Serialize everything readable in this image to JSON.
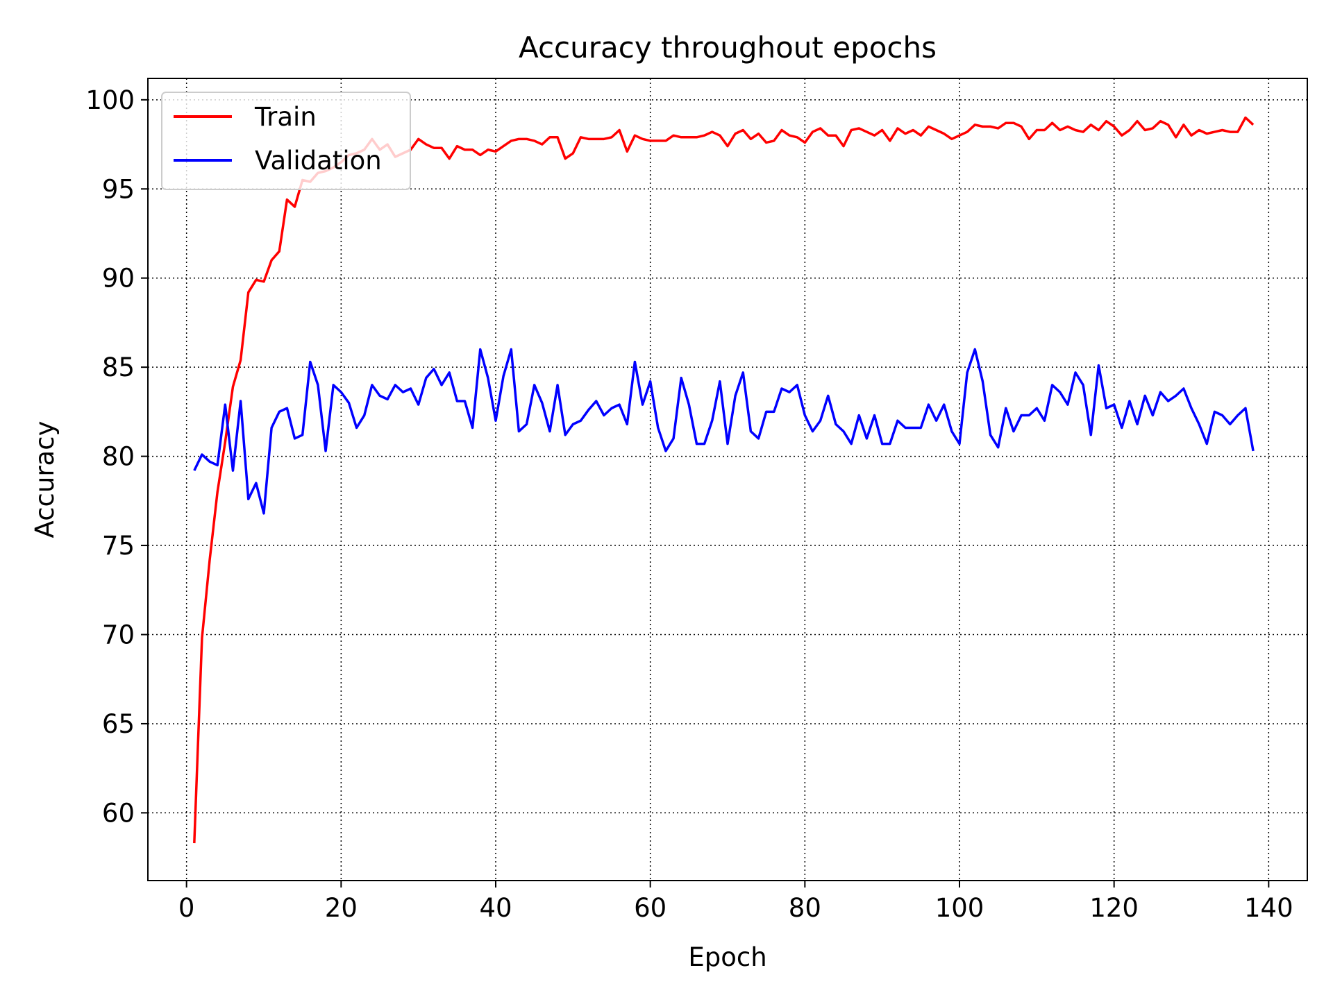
{
  "chart_data": {
    "type": "line",
    "title": "Accuracy throughout epochs",
    "xlabel": "Epoch",
    "ylabel": "Accuracy",
    "xlim": [
      -5,
      145
    ],
    "ylim": [
      56.2,
      101.2
    ],
    "xticks": [
      0,
      20,
      40,
      60,
      80,
      100,
      120,
      140
    ],
    "xtick_labels": [
      "0",
      "20",
      "40",
      "60",
      "80",
      "100",
      "120",
      "140"
    ],
    "yticks": [
      60,
      65,
      70,
      75,
      80,
      85,
      90,
      95,
      100
    ],
    "ytick_labels": [
      "60",
      "65",
      "70",
      "75",
      "80",
      "85",
      "90",
      "95",
      "100"
    ],
    "grid": true,
    "grid_style": "dotted",
    "legend_position": "top-left",
    "series": [
      {
        "name": "Train",
        "color": "#ff0000",
        "x": [
          1,
          2,
          3,
          4,
          5,
          6,
          7,
          8,
          9,
          10,
          11,
          12,
          13,
          14,
          15,
          16,
          17,
          18,
          19,
          20,
          21,
          22,
          23,
          24,
          25,
          26,
          27,
          28,
          29,
          30,
          31,
          32,
          33,
          34,
          35,
          36,
          37,
          38,
          39,
          40,
          41,
          42,
          43,
          44,
          45,
          46,
          47,
          48,
          49,
          50,
          51,
          52,
          53,
          54,
          55,
          56,
          57,
          58,
          59,
          60,
          61,
          62,
          63,
          64,
          65,
          66,
          67,
          68,
          69,
          70,
          71,
          72,
          73,
          74,
          75,
          76,
          77,
          78,
          79,
          80,
          81,
          82,
          83,
          84,
          85,
          86,
          87,
          88,
          89,
          90,
          91,
          92,
          93,
          94,
          95,
          96,
          97,
          98,
          99,
          100,
          101,
          102,
          103,
          104,
          105,
          106,
          107,
          108,
          109,
          110,
          111,
          112,
          113,
          114,
          115,
          116,
          117,
          118,
          119,
          120,
          121,
          122,
          123,
          124,
          125,
          126,
          127,
          128,
          129,
          130,
          131,
          132,
          133,
          134,
          135,
          136,
          137,
          138
        ],
        "values": [
          58.3,
          69.8,
          74.2,
          78.0,
          80.8,
          83.9,
          85.4,
          89.2,
          89.9,
          89.8,
          91.0,
          91.5,
          94.4,
          94.0,
          95.5,
          95.4,
          95.9,
          96.0,
          96.2,
          96.5,
          96.9,
          97.0,
          97.2,
          97.8,
          97.2,
          97.5,
          96.8,
          97.0,
          97.2,
          97.8,
          97.5,
          97.3,
          97.3,
          96.7,
          97.4,
          97.2,
          97.2,
          96.9,
          97.2,
          97.1,
          97.4,
          97.7,
          97.8,
          97.8,
          97.7,
          97.5,
          97.9,
          97.9,
          96.7,
          97.0,
          97.9,
          97.8,
          97.8,
          97.8,
          97.9,
          98.3,
          97.1,
          98.0,
          97.8,
          97.7,
          97.7,
          97.7,
          98.0,
          97.9,
          97.9,
          97.9,
          98.0,
          98.2,
          98.0,
          97.4,
          98.1,
          98.3,
          97.8,
          98.1,
          97.6,
          97.7,
          98.3,
          98.0,
          97.9,
          97.6,
          98.2,
          98.4,
          98.0,
          98.0,
          97.4,
          98.3,
          98.4,
          98.2,
          98.0,
          98.3,
          97.7,
          98.4,
          98.1,
          98.3,
          98.0,
          98.5,
          98.3,
          98.1,
          97.8,
          98.0,
          98.2,
          98.6,
          98.5,
          98.5,
          98.4,
          98.7,
          98.7,
          98.5,
          97.8,
          98.3,
          98.3,
          98.7,
          98.3,
          98.5,
          98.3,
          98.2,
          98.6,
          98.3,
          98.8,
          98.5,
          98.0,
          98.3,
          98.8,
          98.3,
          98.4,
          98.8,
          98.6,
          97.9,
          98.6,
          98.0,
          98.3,
          98.1,
          98.2,
          98.3,
          98.2,
          98.2,
          99.0,
          98.6
        ]
      },
      {
        "name": "Validation",
        "color": "#0000ff",
        "x": [
          1,
          2,
          3,
          4,
          5,
          6,
          7,
          8,
          9,
          10,
          11,
          12,
          13,
          14,
          15,
          16,
          17,
          18,
          19,
          20,
          21,
          22,
          23,
          24,
          25,
          26,
          27,
          28,
          29,
          30,
          31,
          32,
          33,
          34,
          35,
          36,
          37,
          38,
          39,
          40,
          41,
          42,
          43,
          44,
          45,
          46,
          47,
          48,
          49,
          50,
          51,
          52,
          53,
          54,
          55,
          56,
          57,
          58,
          59,
          60,
          61,
          62,
          63,
          64,
          65,
          66,
          67,
          68,
          69,
          70,
          71,
          72,
          73,
          74,
          75,
          76,
          77,
          78,
          79,
          80,
          81,
          82,
          83,
          84,
          85,
          86,
          87,
          88,
          89,
          90,
          91,
          92,
          93,
          94,
          95,
          96,
          97,
          98,
          99,
          100,
          101,
          102,
          103,
          104,
          105,
          106,
          107,
          108,
          109,
          110,
          111,
          112,
          113,
          114,
          115,
          116,
          117,
          118,
          119,
          120,
          121,
          122,
          123,
          124,
          125,
          126,
          127,
          128,
          129,
          130,
          131,
          132,
          133,
          134,
          135,
          136,
          137,
          138
        ],
        "values": [
          79.2,
          80.1,
          79.7,
          79.5,
          82.9,
          79.2,
          83.1,
          77.6,
          78.5,
          76.8,
          81.6,
          82.5,
          82.7,
          81.0,
          81.2,
          85.3,
          84.0,
          80.3,
          84.0,
          83.6,
          83.0,
          81.6,
          82.3,
          84.0,
          83.4,
          83.2,
          84.0,
          83.6,
          83.8,
          82.9,
          84.4,
          84.9,
          84.0,
          84.7,
          83.1,
          83.1,
          81.6,
          86.0,
          84.4,
          82.0,
          84.5,
          86.0,
          81.4,
          81.8,
          84.0,
          83.0,
          81.4,
          84.0,
          81.2,
          81.8,
          82.0,
          82.6,
          83.1,
          82.3,
          82.7,
          82.9,
          81.8,
          85.3,
          82.9,
          84.2,
          81.6,
          80.3,
          81.0,
          84.4,
          82.9,
          80.7,
          80.7,
          82.0,
          84.2,
          80.7,
          83.4,
          84.7,
          81.4,
          81.0,
          82.5,
          82.5,
          83.8,
          83.6,
          84.0,
          82.3,
          81.4,
          82.0,
          83.4,
          81.8,
          81.4,
          80.7,
          82.3,
          81.0,
          82.3,
          80.7,
          80.7,
          82.0,
          81.6,
          81.6,
          81.6,
          82.9,
          82.0,
          82.9,
          81.4,
          80.7,
          84.7,
          86.0,
          84.2,
          81.2,
          80.5,
          82.7,
          81.4,
          82.3,
          82.3,
          82.7,
          82.0,
          84.0,
          83.6,
          82.9,
          84.7,
          84.0,
          81.2,
          85.1,
          82.7,
          82.9,
          81.6,
          83.1,
          81.8,
          83.4,
          82.3,
          83.6,
          83.1,
          83.4,
          83.8,
          82.7,
          81.8,
          80.7,
          82.5,
          82.3,
          81.8,
          82.3,
          82.7,
          80.3
        ]
      }
    ]
  }
}
